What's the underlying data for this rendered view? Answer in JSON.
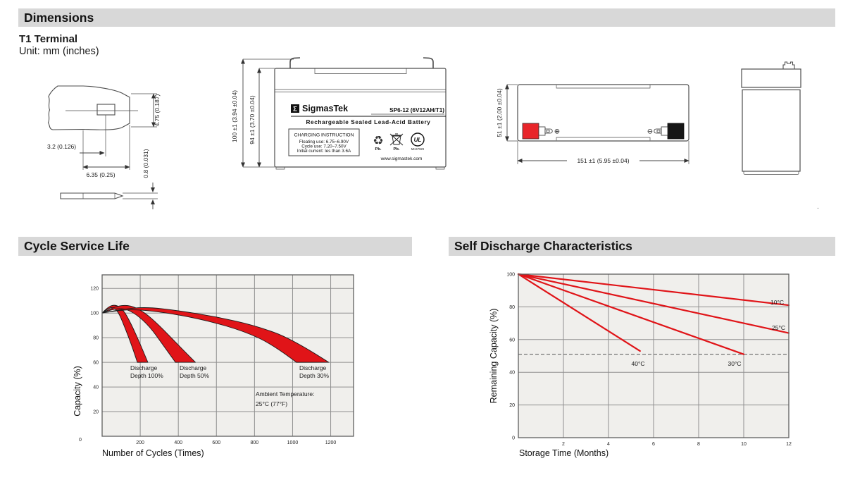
{
  "header": {
    "title": "Dimensions",
    "subtitle": "T1 Terminal",
    "unit_note": "Unit: mm (inches)"
  },
  "section_cycle": {
    "title": "Cycle Service Life"
  },
  "section_self": {
    "title": "Self Discharge Characteristics"
  },
  "terminal_detail": {
    "dim_offset": "3.2 (0.126)",
    "dim_width": "6.35 (0.25)",
    "dim_height": "4.75 (0.187)",
    "dim_thickness": "0.8 (0.031)"
  },
  "front_view": {
    "dim_total_height": "100 ±1 (3.94 ±0.04)",
    "dim_case_height": "94 ±1 (3.70 ±0.04)",
    "logo_sigma": "Σ",
    "brand": "SigmasTek",
    "model": "SP6-12 (6V12AH/T1)",
    "type_line": "Rechargeable Sealed Lead-Acid Battery",
    "charging_title": "CHARGING INSTRUCTION",
    "charging_lines": [
      "Floating use: 6.75~6.90V",
      "Cycle use: 7.20~7.50V",
      "Initial current: les than 3.6A"
    ],
    "recycle_symbol": "♻",
    "pb_caption_1": "Pb.",
    "pb_caption_2": "Pb.",
    "ul_text": "UL",
    "ul_code": "MH47929",
    "website": "www.sigmastek.com"
  },
  "top_view": {
    "dim_height": "51 ±1 (2.00 ±0.04)",
    "dim_length": "151 ±1 (5.95 ±0.04)",
    "positive_symbol": "⊕",
    "negative_symbol": "⊖"
  },
  "stray_mark": ".",
  "chart_data": [
    {
      "id": "cycle-service-life",
      "type": "area",
      "title": "Cycle Service Life",
      "xlabel": "Number of Cycles (Times)",
      "ylabel": "Capacity (%)",
      "origin_label": "0",
      "xlim": [
        0,
        1320
      ],
      "ylim": [
        0,
        131
      ],
      "xticks": [
        200,
        400,
        600,
        800,
        1000,
        1200
      ],
      "yticks": [
        20,
        40,
        60,
        80,
        100,
        120
      ],
      "grid": true,
      "legend": "none",
      "plot_bg": "#f0efec",
      "grid_color": "#8f8f8f",
      "border_color": "#5f5f5f",
      "color": "#e01418",
      "annotations": [
        {
          "lines": [
            "Discharge",
            "Depth 100%"
          ]
        },
        {
          "lines": [
            "Discharge",
            "Depth 50%"
          ]
        },
        {
          "lines": [
            "Discharge",
            "Depth 30%"
          ]
        },
        {
          "lines": [
            "Ambient Temperature:",
            "25°C (77°F)"
          ]
        }
      ],
      "series": [
        {
          "name": "Discharge Depth 100%",
          "band": true,
          "upper": [
            [
              0,
              100
            ],
            [
              30,
              105
            ],
            [
              70,
              107
            ],
            [
              110,
              103
            ],
            [
              150,
              92
            ],
            [
              200,
              75
            ],
            [
              240,
              60
            ]
          ],
          "lower": [
            [
              0,
              100
            ],
            [
              25,
              103
            ],
            [
              55,
              105
            ],
            [
              85,
              101
            ],
            [
              115,
              90
            ],
            [
              155,
              74
            ],
            [
              185,
              60
            ]
          ]
        },
        {
          "name": "Discharge Depth 50%",
          "band": true,
          "upper": [
            [
              0,
              100
            ],
            [
              60,
              105
            ],
            [
              140,
              107
            ],
            [
              220,
              101
            ],
            [
              300,
              90
            ],
            [
              400,
              74
            ],
            [
              490,
              60
            ]
          ],
          "lower": [
            [
              0,
              100
            ],
            [
              50,
              103
            ],
            [
              115,
              104
            ],
            [
              180,
              99
            ],
            [
              250,
              89
            ],
            [
              320,
              74
            ],
            [
              385,
              60
            ]
          ]
        },
        {
          "name": "Discharge Depth 30%",
          "band": true,
          "upper": [
            [
              0,
              100
            ],
            [
              100,
              103
            ],
            [
              230,
              105
            ],
            [
              400,
              102
            ],
            [
              600,
              97
            ],
            [
              800,
              90
            ],
            [
              1000,
              79
            ],
            [
              1190,
              60
            ]
          ],
          "lower": [
            [
              0,
              100
            ],
            [
              80,
              102
            ],
            [
              180,
              103
            ],
            [
              350,
              100
            ],
            [
              550,
              94
            ],
            [
              750,
              85
            ],
            [
              900,
              74
            ],
            [
              1020,
              60
            ]
          ]
        }
      ]
    },
    {
      "id": "self-discharge",
      "type": "line",
      "title": "Self Discharge Characteristics",
      "xlabel": "Storage Time (Months)",
      "ylabel": "Remaining Capacity (%)",
      "xlim": [
        0,
        12
      ],
      "ylim": [
        0,
        100
      ],
      "xticks": [
        2,
        4,
        6,
        8,
        10,
        12
      ],
      "yticks": [
        0,
        20,
        40,
        60,
        80,
        100
      ],
      "grid": true,
      "legend": "inline-labels",
      "plot_bg": "#f0efec",
      "grid_color": "#8f8f8f",
      "border_color": "#5f5f5f",
      "color": "#e01418",
      "dashed_line_y": 51,
      "series": [
        {
          "name": "10°C",
          "points": [
            [
              0,
              100
            ],
            [
              12,
              81
            ]
          ]
        },
        {
          "name": "25°C",
          "points": [
            [
              0,
              100
            ],
            [
              12,
              64
            ]
          ]
        },
        {
          "name": "30°C",
          "points": [
            [
              0,
              100
            ],
            [
              10,
              51
            ]
          ]
        },
        {
          "name": "40°C",
          "points": [
            [
              0,
              100
            ],
            [
              5.4,
              53
            ]
          ]
        }
      ]
    }
  ]
}
